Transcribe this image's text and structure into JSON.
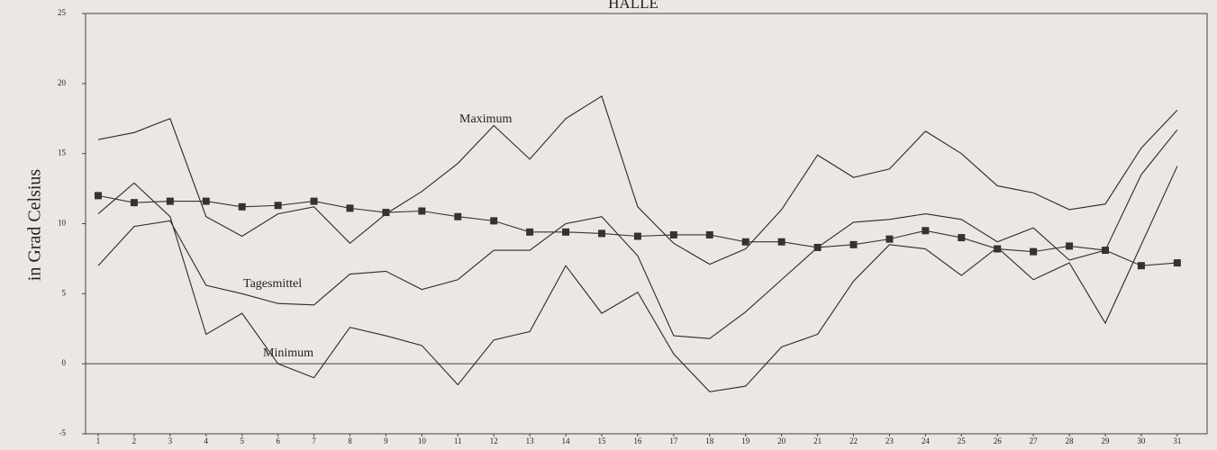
{
  "chart_data": {
    "type": "line",
    "title": "HALLE",
    "ylabel": "in Grad Celsius",
    "x": [
      1,
      2,
      3,
      4,
      5,
      6,
      7,
      8,
      9,
      10,
      11,
      12,
      13,
      14,
      15,
      16,
      17,
      18,
      19,
      20,
      21,
      22,
      23,
      24,
      25,
      26,
      27,
      28,
      29,
      30,
      31
    ],
    "xlim": [
      0.65,
      31.83
    ],
    "xticks": [
      1,
      2,
      3,
      4,
      5,
      6,
      7,
      8,
      9,
      10,
      11,
      12,
      13,
      14,
      15,
      16,
      17,
      18,
      19,
      20,
      21,
      22,
      23,
      24,
      25,
      26,
      27,
      28,
      29,
      30,
      31
    ],
    "ylim": [
      -5,
      25
    ],
    "yticks": [
      -5,
      0,
      5,
      10,
      15,
      20,
      25
    ],
    "series": [
      {
        "name": "Maximum",
        "color": "#2a2a2a",
        "values": [
          16.0,
          16.5,
          17.5,
          10.5,
          9.1,
          10.7,
          11.2,
          8.6,
          10.7,
          12.3,
          14.3,
          17.0,
          14.6,
          17.5,
          19.1,
          11.2,
          8.6,
          7.1,
          8.2,
          11.0,
          14.9,
          13.3,
          13.9,
          16.6,
          15.0,
          12.7,
          12.2,
          11.0,
          11.4,
          15.4,
          18.1
        ]
      },
      {
        "name": "Tagesmittel",
        "color": "#2a2a2a",
        "values": [
          7.0,
          9.8,
          10.2,
          5.6,
          5.0,
          4.3,
          4.2,
          6.4,
          6.6,
          5.3,
          6.0,
          8.1,
          8.1,
          10.0,
          10.5,
          7.7,
          2.0,
          1.8,
          3.7,
          6.0,
          8.3,
          10.1,
          10.3,
          10.7,
          10.3,
          8.7,
          9.7,
          7.4,
          8.1,
          13.5,
          16.7
        ]
      },
      {
        "name": "Minimum",
        "color": "#2a2a2a",
        "values": [
          10.7,
          12.9,
          10.5,
          2.1,
          3.6,
          0.0,
          -1.0,
          2.6,
          2.0,
          1.3,
          -1.5,
          1.7,
          2.3,
          7.0,
          3.6,
          5.1,
          0.7,
          -2.0,
          -1.6,
          1.2,
          2.1,
          5.9,
          8.5,
          8.2,
          6.3,
          8.3,
          6.0,
          7.2,
          2.9,
          8.5,
          14.1
        ]
      },
      {
        "color": "#333333",
        "marker": "square",
        "values": [
          12.0,
          11.5,
          11.6,
          11.6,
          11.2,
          11.3,
          11.6,
          11.1,
          10.8,
          10.9,
          10.5,
          10.2,
          9.4,
          9.4,
          9.3,
          9.1,
          9.2,
          9.2,
          8.7,
          8.7,
          8.3,
          8.5,
          8.9,
          9.5,
          9.0,
          8.2,
          8.0,
          8.4,
          8.1,
          7.0,
          7.2
        ]
      }
    ]
  }
}
